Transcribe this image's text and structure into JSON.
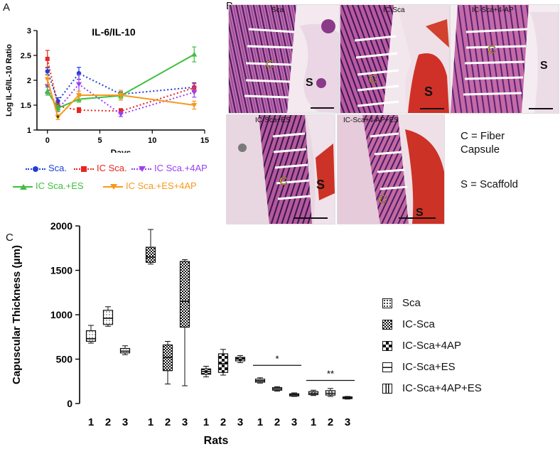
{
  "panels": {
    "a": "A",
    "b": "B",
    "c": "C"
  },
  "colors": {
    "sca": "#1f3fd8",
    "ic_sca": "#e8251f",
    "ic_sca_4ap": "#9b3ff0",
    "ic_sca_es": "#3fbf3f",
    "ic_sca_es_4ap": "#f59a1c"
  },
  "chart_data": [
    {
      "type": "line",
      "title": "IL-6/IL-10",
      "xlabel": "Days",
      "ylabel": "Log IL-6/IL-10 Ratio",
      "xlim": [
        -1,
        15
      ],
      "ylim": [
        1,
        3
      ],
      "xticks": [
        "0",
        "5",
        "10",
        "15"
      ],
      "yticks": [
        "1",
        "1.5",
        "2",
        "2.5",
        "3"
      ],
      "x": [
        0,
        1,
        3,
        7,
        14
      ],
      "significance_marks": [
        {
          "x": 1,
          "y": 1.18,
          "label": "*"
        }
      ],
      "series": [
        {
          "name": "Sca.",
          "values": [
            2.18,
            1.58,
            2.14,
            1.72,
            1.86
          ],
          "errors": [
            0.07,
            0.07,
            0.12,
            0.05,
            0.09
          ]
        },
        {
          "name": "IC Sca.",
          "values": [
            2.43,
            1.48,
            1.4,
            1.38,
            1.85
          ],
          "errors": [
            0.17,
            0.05,
            0.05,
            0.05,
            0.08
          ]
        },
        {
          "name": "IC Sca.+4AP",
          "values": [
            1.88,
            1.42,
            1.92,
            1.32,
            1.76
          ],
          "errors": [
            0.15,
            0.05,
            0.2,
            0.05,
            0.1
          ]
        },
        {
          "name": "IC Sca.+ES",
          "values": [
            1.78,
            1.44,
            1.62,
            1.69,
            2.52
          ],
          "errors": [
            0.08,
            0.06,
            0.06,
            0.06,
            0.15
          ]
        },
        {
          "name": "IC Sca.+ES+4AP",
          "values": [
            2.02,
            1.26,
            1.7,
            1.7,
            1.5
          ],
          "errors": [
            0.1,
            0.05,
            0.08,
            0.1,
            0.08
          ]
        }
      ]
    },
    {
      "type": "box",
      "title": "",
      "xlabel": "Rats",
      "ylabel": "Capuscular Thickness (μm)",
      "ylim": [
        0,
        2000
      ],
      "yticks": [
        "0",
        "500",
        "1000",
        "1500",
        "2000"
      ],
      "categories": [
        "1",
        "2",
        "3"
      ],
      "significance": [
        {
          "group": "IC-Sca+ES",
          "label": "*"
        },
        {
          "group": "IC-Sca+4AP+ES",
          "label": "**"
        }
      ],
      "series": [
        {
          "name": "Sca",
          "boxes": [
            [
              680,
              700,
              730,
              820,
              880
            ],
            [
              870,
              890,
              960,
              1050,
              1090
            ],
            [
              550,
              570,
              590,
              620,
              650
            ]
          ]
        },
        {
          "name": "IC-Sca",
          "boxes": [
            [
              1570,
              1590,
              1650,
              1760,
              1960
            ],
            [
              220,
              370,
              520,
              660,
              700
            ],
            [
              200,
              860,
              1150,
              1600,
              1620
            ]
          ]
        },
        {
          "name": "IC-Sca+4AP",
          "boxes": [
            [
              300,
              330,
              360,
              390,
              420
            ],
            [
              320,
              350,
              450,
              560,
              610
            ],
            [
              460,
              480,
              500,
              520,
              540
            ]
          ]
        },
        {
          "name": "IC-Sca+ES",
          "boxes": [
            [
              230,
              240,
              255,
              275,
              290
            ],
            [
              140,
              150,
              165,
              180,
              190
            ],
            [
              80,
              85,
              100,
              110,
              120
            ]
          ]
        },
        {
          "name": "IC-Sca+4AP+ES",
          "boxes": [
            [
              90,
              100,
              115,
              135,
              150
            ],
            [
              80,
              95,
              115,
              145,
              170
            ],
            [
              50,
              55,
              65,
              75,
              80
            ]
          ]
        }
      ]
    }
  ],
  "histology": {
    "images": [
      {
        "caption": "Sca"
      },
      {
        "caption": "IC-Sca"
      },
      {
        "caption": "IC-Sca+4-AP"
      },
      {
        "caption": "IC-Sca+ES"
      },
      {
        "caption": "IC-Sca+4-AP+ES"
      }
    ],
    "marker_c": "C",
    "marker_s": "S",
    "note_c_line1": "C = Fiber",
    "note_c_line2": "Capsule",
    "note_s": "S = Scaffold"
  }
}
